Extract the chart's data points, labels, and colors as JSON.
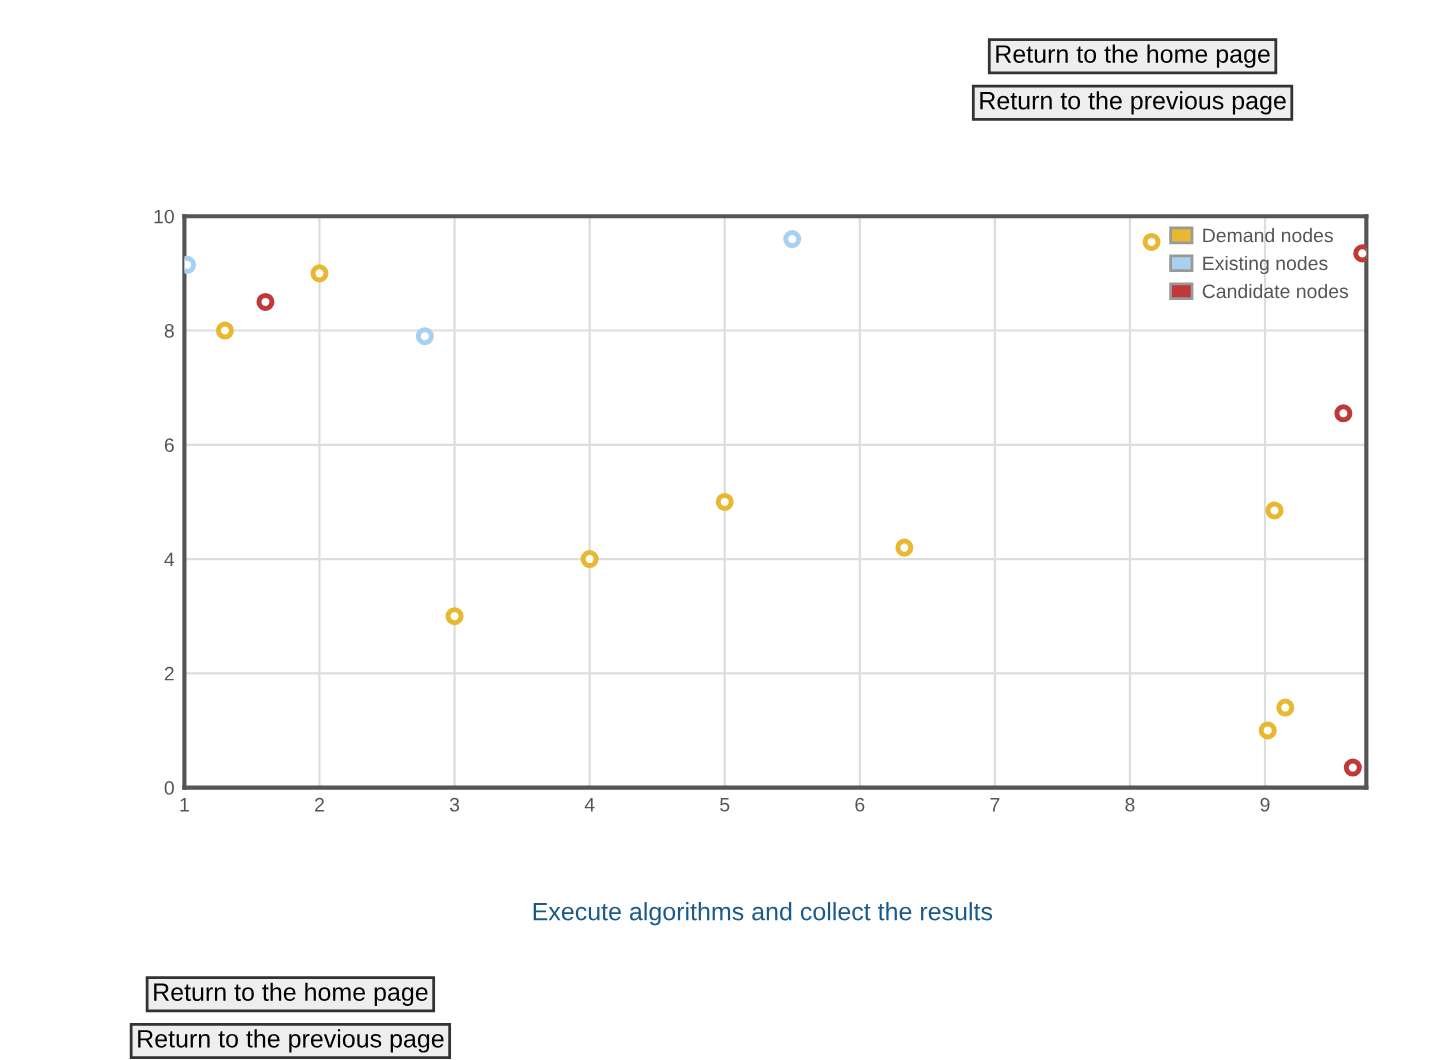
{
  "chart_data": {
    "type": "scatter",
    "series": [
      {
        "name": "Demand nodes",
        "color": "#e8b830",
        "x": [
          1.3,
          2,
          3,
          4,
          5,
          6.33,
          8.16,
          9.07,
          9.15,
          9.02
        ],
        "values": [
          8.0,
          9.0,
          3.0,
          4.0,
          5.0,
          4.2,
          9.55,
          4.85,
          1.4,
          1.0
        ]
      },
      {
        "name": "Existing nodes",
        "color": "#a8d0f0",
        "x": [
          1.02,
          2.78,
          5.5
        ],
        "values": [
          9.15,
          7.9,
          9.6
        ]
      },
      {
        "name": "Candidate nodes",
        "color": "#c03838",
        "x": [
          1.6,
          9.72,
          9.58,
          9.65
        ],
        "values": [
          8.5,
          9.35,
          6.55,
          0.35
        ]
      }
    ],
    "xlim": [
      1,
      9.75
    ],
    "xticks": [
      1,
      2,
      3,
      4,
      5,
      6,
      7,
      8,
      9
    ],
    "ylim": [
      0,
      10
    ],
    "yticks": [
      0,
      2,
      4,
      6,
      8,
      10
    ],
    "grid": true,
    "legend": "top right",
    "marker": "circle",
    "annotations": [
      "Return to the home page",
      "Return to the previous page",
      "Execute algorithms and collect the results",
      "Return to the home page",
      "Return to the previous page"
    ]
  }
}
